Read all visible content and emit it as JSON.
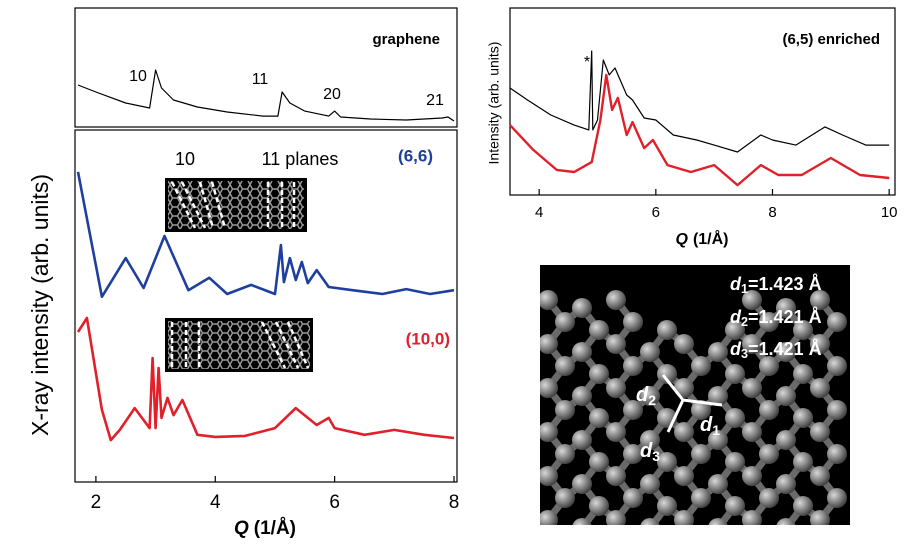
{
  "chart_data": [
    {
      "type": "line",
      "xlim": [
        1.65,
        8.05
      ],
      "ylim": [
        0,
        100
      ],
      "series": [
        {
          "name": "graphene",
          "color": "#000000",
          "x": [
            1.7,
            2.0,
            2.5,
            2.9,
            3.0,
            3.1,
            3.3,
            3.7,
            4.2,
            4.8,
            5.05,
            5.12,
            5.25,
            5.5,
            5.9,
            6.0,
            6.1,
            6.6,
            7.2,
            7.8,
            7.9,
            8.0
          ],
          "values": [
            35.3,
            29.4,
            20.2,
            16,
            47.9,
            32.8,
            22.7,
            16.8,
            12.6,
            9.2,
            9.2,
            29.4,
            20.2,
            13.4,
            9.2,
            13.4,
            8.4,
            6.7,
            5.9,
            7.6,
            8.4,
            5
          ]
        }
      ],
      "annotations": [
        "10",
        "11",
        "20",
        "21"
      ]
    },
    {
      "type": "line",
      "xlim": [
        1.65,
        8.05
      ],
      "ylim": [
        0,
        100
      ],
      "xticks": [
        2,
        4,
        6,
        8
      ],
      "x_label": {
        "symbol": "Q",
        "unit": "(1/Å)"
      },
      "y_label": "X-ray intensity (arb. units)",
      "series": [
        {
          "name": "(6,6)",
          "color": "#1f3f9e",
          "x": [
            1.7,
            2.1,
            2.5,
            2.8,
            3.15,
            3.55,
            3.9,
            4.2,
            4.6,
            5.0,
            5.1,
            5.15,
            5.25,
            5.35,
            5.45,
            5.55,
            5.7,
            5.9,
            6.3,
            6.8,
            7.2,
            7.6,
            8.0
          ],
          "values": [
            88.1,
            52.6,
            63.6,
            55.1,
            69.9,
            54.5,
            58,
            53.4,
            56,
            53.4,
            67.3,
            56.8,
            63.6,
            57.4,
            62.5,
            56.5,
            60.2,
            55.4,
            54.5,
            53.4,
            54.8,
            53.4,
            54.5
          ]
        },
        {
          "name": "(10,0)",
          "color": "#e0202a",
          "x": [
            1.7,
            1.85,
            2.1,
            2.25,
            2.4,
            2.65,
            2.9,
            2.95,
            3.0,
            3.05,
            3.1,
            3.2,
            3.3,
            3.45,
            3.7,
            4.0,
            4.5,
            5.0,
            5.35,
            5.7,
            5.9,
            6.0,
            6.5,
            7.0,
            7.5,
            8.0
          ],
          "values": [
            42.6,
            46.6,
            20.5,
            11.9,
            14.8,
            21,
            15.3,
            35.2,
            15.3,
            32.4,
            18.2,
            23.9,
            19,
            23.3,
            13.4,
            12.8,
            13.1,
            15.3,
            21,
            16.2,
            18.2,
            15.3,
            13.4,
            14.8,
            13.4,
            12.5
          ]
        }
      ],
      "annotations": [
        "10",
        "11 planes"
      ]
    },
    {
      "type": "line",
      "title": "(6,5) enriched",
      "xlim": [
        3.5,
        10.1
      ],
      "ylim": [
        0,
        100
      ],
      "xticks": [
        4,
        6,
        8,
        10
      ],
      "x_label": {
        "symbol": "Q",
        "unit": "(1/Å)"
      },
      "y_label": "Intensity (arb. units)",
      "series": [
        {
          "color": "#000000",
          "x": [
            3.5,
            3.8,
            4.2,
            4.6,
            4.85,
            4.9,
            4.92,
            5.0,
            5.1,
            5.2,
            5.3,
            5.5,
            5.6,
            5.8,
            6.0,
            6.3,
            6.7,
            7.0,
            7.4,
            7.8,
            8.0,
            8.4,
            8.9,
            9.2,
            9.6,
            10.0
          ],
          "values": [
            57.2,
            50.8,
            42.8,
            37.4,
            34.8,
            77,
            34.8,
            40.1,
            72.2,
            64.2,
            67.9,
            53.5,
            50.8,
            41.2,
            40.1,
            32.1,
            29.4,
            26.7,
            23,
            32.1,
            29.4,
            26.7,
            36.4,
            32.1,
            26.7,
            26.7
          ]
        },
        {
          "color": "#e0202a",
          "x": [
            3.5,
            3.9,
            4.3,
            4.6,
            4.9,
            5.05,
            5.15,
            5.25,
            5.35,
            5.5,
            5.6,
            5.8,
            5.95,
            6.2,
            6.6,
            7.0,
            7.4,
            7.8,
            8.1,
            8.5,
            9.0,
            9.5,
            10.0
          ],
          "values": [
            37.4,
            24.1,
            13.4,
            12.3,
            17.6,
            40.1,
            64.2,
            45.5,
            51.9,
            32.1,
            39,
            25.1,
            29.4,
            16,
            12.3,
            16,
            5.3,
            16,
            10.7,
            10.7,
            19.8,
            10.7,
            9.1
          ]
        }
      ],
      "annotations": [
        "*"
      ]
    }
  ],
  "structure_image": {
    "distances": [
      {
        "symbol": "d",
        "sub": "1",
        "text": "=1.423 Å"
      },
      {
        "symbol": "d",
        "sub": "2",
        "text": "=1.421 Å"
      },
      {
        "symbol": "d",
        "sub": "3",
        "text": "=1.421 Å"
      }
    ],
    "bond_labels": [
      {
        "symbol": "d",
        "sub": "2"
      },
      {
        "symbol": "d",
        "sub": "1"
      },
      {
        "symbol": "d",
        "sub": "3"
      }
    ]
  }
}
